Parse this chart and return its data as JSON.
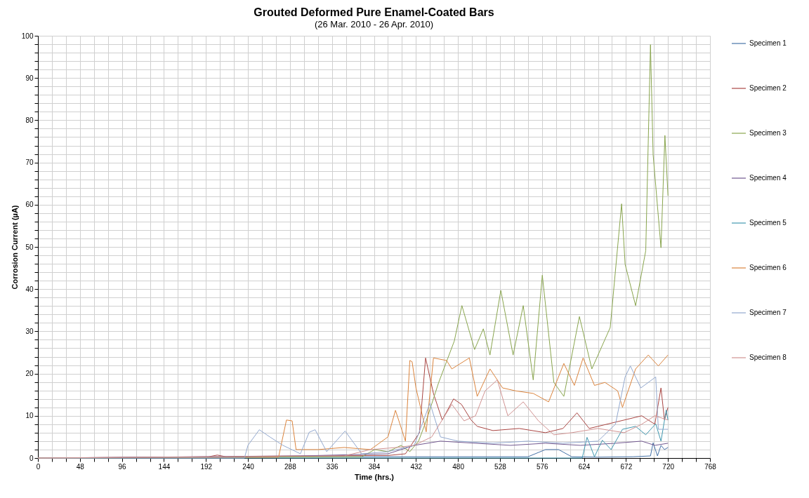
{
  "chart_data": {
    "type": "line",
    "title": "Grouted Deformed Pure Enamel-Coated Bars",
    "subtitle": "(26 Mar. 2010 - 26 Apr. 2010)",
    "xlabel": "Time (hrs.)",
    "ylabel": "Corrosion Current (µA)",
    "xlim": [
      0,
      768
    ],
    "xticks": [
      0,
      {
        "value": 16,
        "label": null
      },
      {
        "value": 32,
        "label": null
      },
      48,
      {
        "value": 64,
        "label": null
      },
      {
        "value": 80,
        "label": null
      },
      96,
      {
        "value": 112,
        "label": null
      },
      {
        "value": 128,
        "label": null
      },
      144,
      {
        "value": 160,
        "label": null
      },
      {
        "value": 176,
        "label": null
      },
      192,
      {
        "value": 208,
        "label": null
      },
      {
        "value": 224,
        "label": null
      },
      240,
      {
        "value": 256,
        "label": null
      },
      {
        "value": 272,
        "label": null
      },
      288,
      {
        "value": 304,
        "label": null
      },
      {
        "value": 320,
        "label": null
      },
      336,
      {
        "value": 352,
        "label": null
      },
      {
        "value": 368,
        "label": null
      },
      384,
      {
        "value": 400,
        "label": null
      },
      {
        "value": 416,
        "label": null
      },
      432,
      {
        "value": 448,
        "label": null
      },
      {
        "value": 464,
        "label": null
      },
      480,
      {
        "value": 496,
        "label": null
      },
      {
        "value": 512,
        "label": null
      },
      528,
      {
        "value": 544,
        "label": null
      },
      {
        "value": 560,
        "label": null
      },
      576,
      {
        "value": 592,
        "label": null
      },
      {
        "value": 608,
        "label": null
      },
      624,
      {
        "value": 640,
        "label": null
      },
      {
        "value": 656,
        "label": null
      },
      672,
      {
        "value": 688,
        "label": null
      },
      {
        "value": 704,
        "label": null
      },
      720,
      {
        "value": 736,
        "label": null
      },
      {
        "value": 752,
        "label": null
      },
      768
    ],
    "ylim": [
      0,
      100
    ],
    "yticks": [
      0,
      {
        "value": 2,
        "label": null
      },
      {
        "value": 4,
        "label": null
      },
      {
        "value": 6,
        "label": null
      },
      {
        "value": 8,
        "label": null
      },
      10,
      {
        "value": 12,
        "label": null
      },
      {
        "value": 14,
        "label": null
      },
      {
        "value": 16,
        "label": null
      },
      {
        "value": 18,
        "label": null
      },
      20,
      {
        "value": 22,
        "label": null
      },
      {
        "value": 24,
        "label": null
      },
      {
        "value": 26,
        "label": null
      },
      {
        "value": 28,
        "label": null
      },
      30,
      {
        "value": 32,
        "label": null
      },
      {
        "value": 34,
        "label": null
      },
      {
        "value": 36,
        "label": null
      },
      {
        "value": 38,
        "label": null
      },
      40,
      {
        "value": 42,
        "label": null
      },
      {
        "value": 44,
        "label": null
      },
      {
        "value": 46,
        "label": null
      },
      {
        "value": 48,
        "label": null
      },
      50,
      {
        "value": 52,
        "label": null
      },
      {
        "value": 54,
        "label": null
      },
      {
        "value": 56,
        "label": null
      },
      {
        "value": 58,
        "label": null
      },
      60,
      {
        "value": 62,
        "label": null
      },
      {
        "value": 64,
        "label": null
      },
      {
        "value": 66,
        "label": null
      },
      {
        "value": 68,
        "label": null
      },
      70,
      {
        "value": 72,
        "label": null
      },
      {
        "value": 74,
        "label": null
      },
      {
        "value": 76,
        "label": null
      },
      {
        "value": 78,
        "label": null
      },
      80,
      {
        "value": 82,
        "label": null
      },
      {
        "value": 84,
        "label": null
      },
      {
        "value": 86,
        "label": null
      },
      {
        "value": 88,
        "label": null
      },
      90,
      {
        "value": 92,
        "label": null
      },
      {
        "value": 94,
        "label": null
      },
      {
        "value": 96,
        "label": null
      },
      {
        "value": 98,
        "label": null
      },
      100
    ],
    "grid": true,
    "legend": "right",
    "marker": "none",
    "line_style": "solid",
    "series": [
      {
        "name": "Specimen 1",
        "color": "#4572a7",
        "x": [
          0,
          200,
          400,
          560,
          580,
          595,
          610,
          640,
          680,
          700,
          703,
          708,
          712,
          716,
          720
        ],
        "values": [
          0,
          0.2,
          0.3,
          0.3,
          2,
          2,
          0.3,
          0.2,
          0.3,
          0.5,
          3.6,
          0.5,
          3,
          2,
          2.5
        ]
      },
      {
        "name": "Specimen 2",
        "color": "#aa4643",
        "x": [
          0,
          195,
          205,
          215,
          230,
          300,
          400,
          420,
          436,
          443,
          452,
          462,
          475,
          484,
          495,
          502,
          520,
          550,
          580,
          600,
          616,
          630,
          650,
          670,
          690,
          705,
          712,
          716,
          720
        ],
        "values": [
          0,
          0.3,
          0.7,
          0.3,
          0.4,
          0.5,
          0.6,
          1,
          6,
          23.7,
          15.3,
          9,
          14,
          12.7,
          9,
          7.5,
          6.5,
          7,
          6,
          7,
          10.7,
          7,
          8,
          9,
          10,
          8,
          16.6,
          9,
          12
        ]
      },
      {
        "name": "Specimen 3",
        "color": "#89a54e",
        "x": [
          0,
          370,
          385,
          400,
          415,
          425,
          435,
          443.7,
          458,
          475.8,
          484.5,
          499,
          509,
          516.6,
          529,
          543,
          554.6,
          566,
          576.4,
          589.6,
          601,
          618.8,
          633,
          654,
          667,
          671,
          683,
          694.6,
          700,
          703,
          712,
          716.5,
          720
        ],
        "values": [
          0,
          0.3,
          2,
          1.5,
          3,
          1.5,
          4,
          8.8,
          17.9,
          27.7,
          36.1,
          25.7,
          30.6,
          24.4,
          39.7,
          24.4,
          36.1,
          18.5,
          43.3,
          17.9,
          14.6,
          33.5,
          21.1,
          30.9,
          60.2,
          45.9,
          36.1,
          49.1,
          97.9,
          71.9,
          49.8,
          76.4,
          62.1
        ]
      },
      {
        "name": "Specimen 4",
        "color": "#71588f",
        "x": [
          0,
          300,
          400,
          430,
          460,
          500,
          540,
          580,
          620,
          660,
          690,
          705,
          720
        ],
        "values": [
          0,
          0.5,
          1,
          3,
          4,
          3.5,
          3,
          3.5,
          3,
          3.5,
          4,
          3,
          3.5
        ]
      },
      {
        "name": "Specimen 5",
        "color": "#4198af",
        "x": [
          0,
          620,
          622,
          627.5,
          636,
          645,
          655,
          668,
          683,
          694.6,
          706,
          712,
          718,
          720
        ],
        "values": [
          0,
          0,
          0,
          4.9,
          0.3,
          4.2,
          2,
          6.8,
          7.5,
          5.5,
          8.1,
          4,
          11.4,
          9
        ]
      },
      {
        "name": "Specimen 6",
        "color": "#db843d",
        "x": [
          0,
          275,
          284,
          290.5,
          295,
          320,
          350,
          380,
          400,
          408.6,
          420,
          425,
          427.6,
          432,
          443.7,
          452,
          467,
          473,
          493,
          502,
          516.6,
          531,
          546,
          566,
          583.6,
          601,
          613,
          623,
          636,
          648,
          662.5,
          668,
          683,
          697.5,
          709,
          720
        ],
        "values": [
          0,
          0.2,
          9,
          8.8,
          2,
          2,
          2.5,
          2,
          5,
          11.3,
          4,
          23.1,
          22.8,
          16.6,
          6.2,
          23.7,
          23.1,
          21.1,
          23.7,
          14.6,
          21.1,
          16.6,
          15.9,
          15.3,
          13.3,
          22.4,
          17.2,
          23.7,
          17.2,
          17.9,
          15.9,
          12,
          21.1,
          24.4,
          21.8,
          24.4
        ]
      },
      {
        "name": "Specimen 7",
        "color": "#93a9cf",
        "x": [
          0,
          236,
          240,
          253,
          265,
          280,
          300,
          310,
          316.8,
          330,
          351,
          370,
          400,
          430,
          448,
          460,
          480,
          520,
          560,
          600,
          640,
          660,
          671,
          677,
          689,
          706,
          709,
          720
        ],
        "values": [
          0,
          0,
          3,
          6.7,
          5,
          3,
          1,
          6.1,
          6.7,
          1.5,
          6.4,
          1,
          1.5,
          3,
          13,
          5,
          4,
          3.5,
          4,
          3.5,
          4,
          8,
          19.2,
          21.8,
          16.6,
          19.2,
          6.8,
          6.8
        ]
      },
      {
        "name": "Specimen 8",
        "color": "#d19392",
        "x": [
          0,
          350,
          380,
          410,
          430,
          450,
          473,
          487,
          500,
          511,
          525,
          537,
          554.6,
          572,
          589.6,
          610,
          640,
          670,
          690,
          705,
          720
        ],
        "values": [
          0,
          0.5,
          2,
          2.5,
          3,
          5,
          12.7,
          8.8,
          10,
          15.9,
          18.5,
          10,
          13.3,
          8.8,
          5.5,
          6,
          7,
          6,
          8,
          10,
          9
        ]
      }
    ]
  }
}
